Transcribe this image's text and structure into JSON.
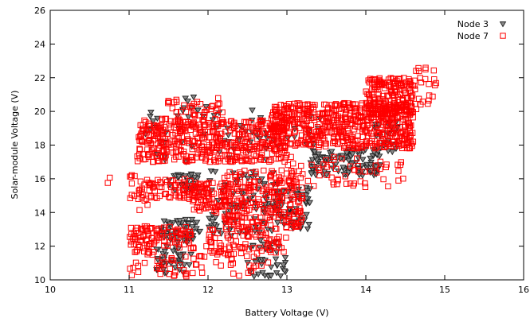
{
  "chart_data": {
    "type": "scatter",
    "title": "",
    "xlabel": "Battery Voltage (V)",
    "ylabel": "Solar-module Voltage (V)",
    "xlim": [
      10,
      16
    ],
    "ylim": [
      10,
      26
    ],
    "xticks": [
      "10",
      "11",
      "12",
      "13",
      "14",
      "15",
      "16"
    ],
    "yticks": [
      "10",
      "12",
      "14",
      "16",
      "18",
      "20",
      "22",
      "24",
      "26"
    ],
    "grid": false,
    "legend": "top-right",
    "series": [
      {
        "name": "Node 3",
        "marker": "triangle-down",
        "color": "#222222",
        "fill": "#888888",
        "clusters": [
          {
            "x": [
              11.4,
              11.9
            ],
            "y": [
              12.2,
              13.6
            ],
            "n": 60
          },
          {
            "x": [
              11.3,
              11.8
            ],
            "y": [
              10.4,
              12.0
            ],
            "n": 40
          },
          {
            "x": [
              11.5,
              11.9
            ],
            "y": [
              15.2,
              16.3
            ],
            "n": 30
          },
          {
            "x": [
              12.0,
              12.9
            ],
            "y": [
              12.6,
              16.5
            ],
            "n": 90
          },
          {
            "x": [
              12.5,
              13.0
            ],
            "y": [
              10.2,
              12.4
            ],
            "n": 40
          },
          {
            "x": [
              12.8,
              13.3
            ],
            "y": [
              13.0,
              15.5
            ],
            "n": 60
          },
          {
            "x": [
              13.3,
              14.2
            ],
            "y": [
              16.2,
              17.8
            ],
            "n": 110
          },
          {
            "x": [
              14.1,
              14.4
            ],
            "y": [
              17.5,
              19.5
            ],
            "n": 30
          },
          {
            "x": [
              11.2,
              13.5
            ],
            "y": [
              17.0,
              20.2
            ],
            "n": 70
          },
          {
            "x": [
              11.6,
              12.0
            ],
            "y": [
              20.0,
              21.0
            ],
            "n": 8
          }
        ]
      },
      {
        "name": "Node 7",
        "marker": "square",
        "color": "#ff0000",
        "clusters": [
          {
            "x": [
              11.1,
              13.0
            ],
            "y": [
              17.0,
              19.5
            ],
            "n": 450
          },
          {
            "x": [
              12.8,
              14.6
            ],
            "y": [
              17.8,
              20.5
            ],
            "n": 550
          },
          {
            "x": [
              14.0,
              14.6
            ],
            "y": [
              19.5,
              22.0
            ],
            "n": 200
          },
          {
            "x": [
              14.6,
              14.9
            ],
            "y": [
              20.0,
              22.6
            ],
            "n": 25
          },
          {
            "x": [
              11.4,
              12.2
            ],
            "y": [
              19.0,
              20.8
            ],
            "n": 60
          },
          {
            "x": [
              11.8,
              12.3
            ],
            "y": [
              14.0,
              15.8
            ],
            "n": 90
          },
          {
            "x": [
              12.2,
              13.2
            ],
            "y": [
              13.0,
              16.5
            ],
            "n": 260
          },
          {
            "x": [
              11.0,
              11.8
            ],
            "y": [
              12.0,
              13.2
            ],
            "n": 90
          },
          {
            "x": [
              11.1,
              11.8
            ],
            "y": [
              14.8,
              16.0
            ],
            "n": 70
          },
          {
            "x": [
              11.0,
              12.8
            ],
            "y": [
              10.2,
              12.0
            ],
            "n": 90
          },
          {
            "x": [
              10.7,
              11.3
            ],
            "y": [
              14.0,
              16.3
            ],
            "n": 18
          },
          {
            "x": [
              13.0,
              14.5
            ],
            "y": [
              15.5,
              17.3
            ],
            "n": 60
          },
          {
            "x": [
              12.0,
              13.0
            ],
            "y": [
              11.5,
              13.0
            ],
            "n": 70
          }
        ]
      }
    ]
  }
}
